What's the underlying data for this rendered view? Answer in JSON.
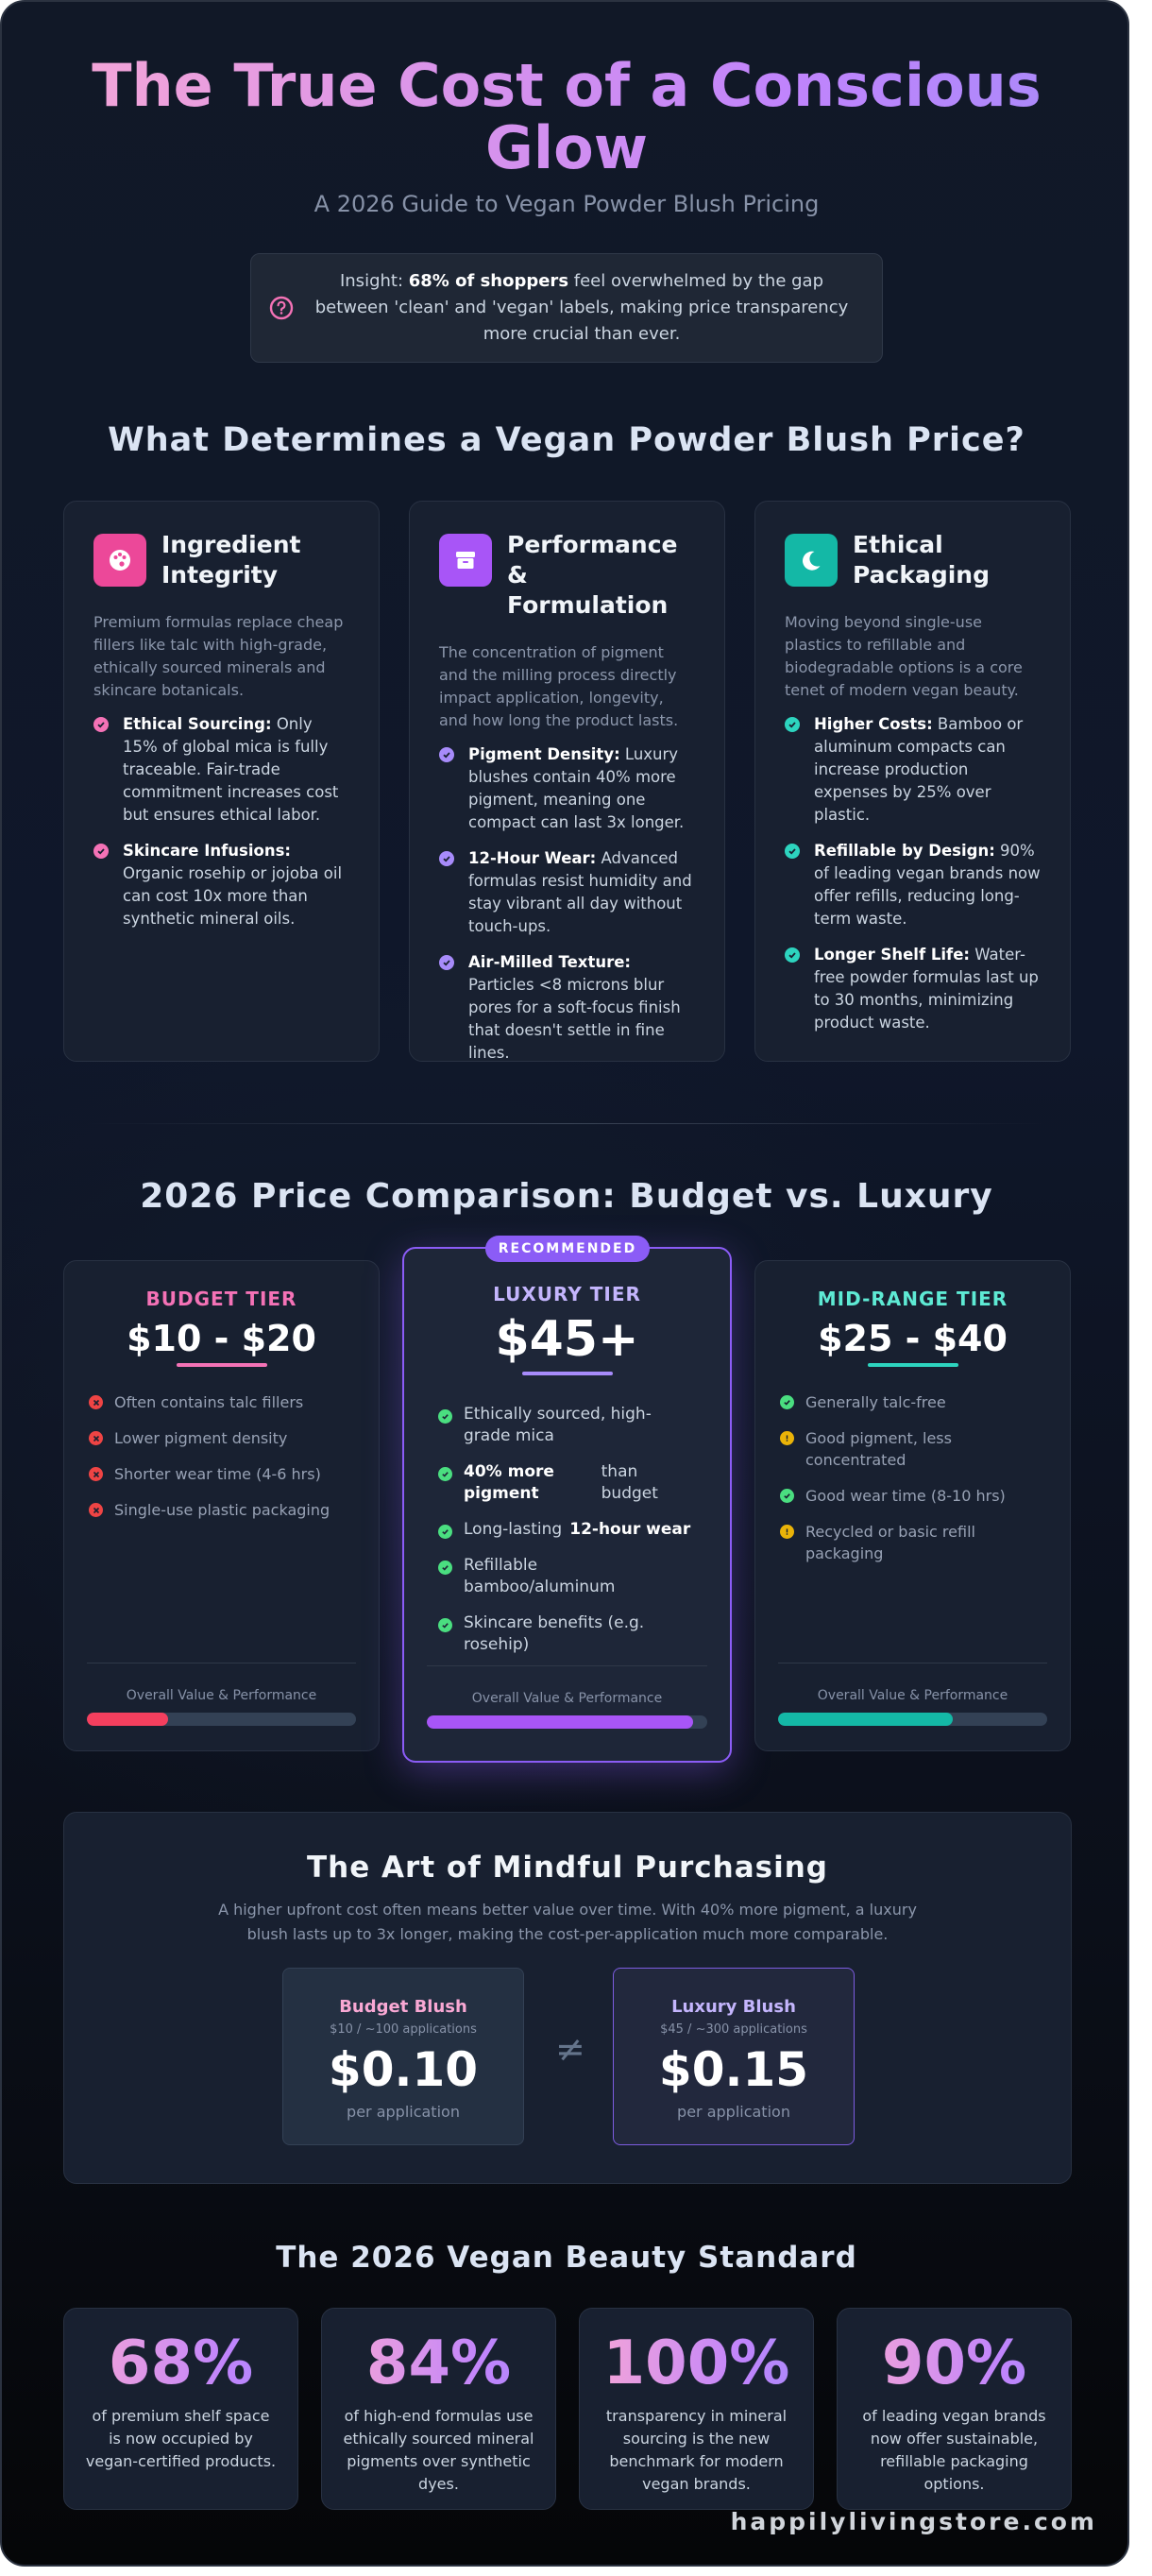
{
  "header": {
    "title": "The True Cost of a Conscious Glow",
    "subtitle": "A 2026 Guide to Vegan Powder Blush Pricing",
    "insight_prefix": "Insight: ",
    "insight_bold": "68% of shoppers",
    "insight_rest": " feel overwhelmed by the gap between 'clean' and 'vegan' labels, making price transparency more crucial than ever."
  },
  "factors": {
    "heading": "What Determines a Vegan Powder Blush Price?",
    "cards": [
      {
        "title": "Ingredient Integrity",
        "icon": "palette-icon",
        "color": "#ec4899",
        "desc": "Premium formulas replace cheap fillers like talc with high-grade, ethically sourced minerals and skincare botanicals.",
        "items": [
          {
            "bold": "Ethical Sourcing:",
            "text": " Only 15% of global mica is fully traceable. Fair-trade commitment increases cost but ensures ethical labor."
          },
          {
            "bold": "Skincare Infusions:",
            "text": " Organic rosehip or jojoba oil can cost 10x more than synthetic mineral oils."
          }
        ]
      },
      {
        "title": "Performance & Formulation",
        "icon": "archive-box-icon",
        "color": "#a855f7",
        "desc": "The concentration of pigment and the milling process directly impact application, longevity, and how long the product lasts.",
        "items": [
          {
            "bold": "Pigment Density:",
            "text": " Luxury blushes contain 40% more pigment, meaning one compact can last 3x longer."
          },
          {
            "bold": "12-Hour Wear:",
            "text": " Advanced formulas resist humidity and stay vibrant all day without touch-ups."
          },
          {
            "bold": "Air-Milled Texture:",
            "text": " Particles <8 microns blur pores for a soft-focus finish that doesn't settle in fine lines."
          }
        ]
      },
      {
        "title": "Ethical Packaging",
        "icon": "moon-icon",
        "color": "#14b8a6",
        "desc": "Moving beyond single-use plastics to refillable and biodegradable options is a core tenet of modern vegan beauty.",
        "items": [
          {
            "bold": "Higher Costs:",
            "text": " Bamboo or aluminum compacts can increase production expenses by 25% over plastic."
          },
          {
            "bold": "Refillable by Design:",
            "text": " 90% of leading vegan brands now offer refills, reducing long-term waste."
          },
          {
            "bold": "Longer Shelf Life:",
            "text": " Water-free powder formulas last up to 30 months, minimizing product waste."
          }
        ]
      }
    ]
  },
  "pricing": {
    "heading": "2026 Price Comparison: Budget vs. Luxury",
    "badge": "RECOMMENDED",
    "foot_label": "Overall Value & Performance",
    "budget": {
      "name": "BUDGET TIER",
      "price": "$10 - $20",
      "color": "#f472b6",
      "value": 0.3,
      "items": [
        "Often contains talc fillers",
        "Lower pigment density",
        "Shorter wear time (4-6 hrs)",
        "Single-use plastic packaging"
      ]
    },
    "luxury": {
      "name": "LUXURY TIER",
      "price": "$45+",
      "color": "#c4b5fd",
      "value": 0.95,
      "items": [
        {
          "text": "Ethically sourced, high-grade mica"
        },
        {
          "bold": "40% more pigment",
          "text": "than budget"
        },
        {
          "text": "Long-lasting",
          "bold2": "12-hour wear"
        },
        {
          "text": "Refillable bamboo/aluminum"
        },
        {
          "text": "Skincare benefits (e.g. rosehip)"
        }
      ]
    },
    "mid": {
      "name": "MID-RANGE TIER",
      "price": "$25 - $40",
      "color": "#5eead4",
      "value": 0.65,
      "items": [
        {
          "text": "Generally talc-free",
          "status": "check"
        },
        {
          "text": "Good pigment, less concentrated",
          "status": "warn"
        },
        {
          "text": "Good wear time (8-10 hrs)",
          "status": "check"
        },
        {
          "text": "Recycled or basic refill packaging",
          "status": "warn"
        }
      ]
    }
  },
  "mindful": {
    "heading": "The Art of Mindful Purchasing",
    "desc": "A higher upfront cost often means better value over time. With 40% more pigment, a luxury blush lasts up to 3x longer, making the cost-per-application much more comparable.",
    "neq": "≠",
    "budget": {
      "name": "Budget Blush",
      "sub": "$10 / ~100 applications",
      "price": "$0.10",
      "unit": "per application"
    },
    "luxury": {
      "name": "Luxury Blush",
      "sub": "$45 / ~300 applications",
      "price": "$0.15",
      "unit": "per application"
    }
  },
  "standard": {
    "heading": "The 2026 Vegan Beauty Standard",
    "stats": [
      {
        "num": "68%",
        "desc": "of premium shelf space is now occupied by vegan-certified products."
      },
      {
        "num": "84%",
        "desc": "of high-end formulas use ethically sourced mineral pigments over synthetic dyes."
      },
      {
        "num": "100%",
        "desc": "transparency in mineral sourcing is the new benchmark for modern vegan brands."
      },
      {
        "num": "90%",
        "desc": "of leading vegan brands now offer sustainable, refillable packaging options."
      }
    ]
  },
  "footer": {
    "brand": "happilylivingstore.com"
  }
}
